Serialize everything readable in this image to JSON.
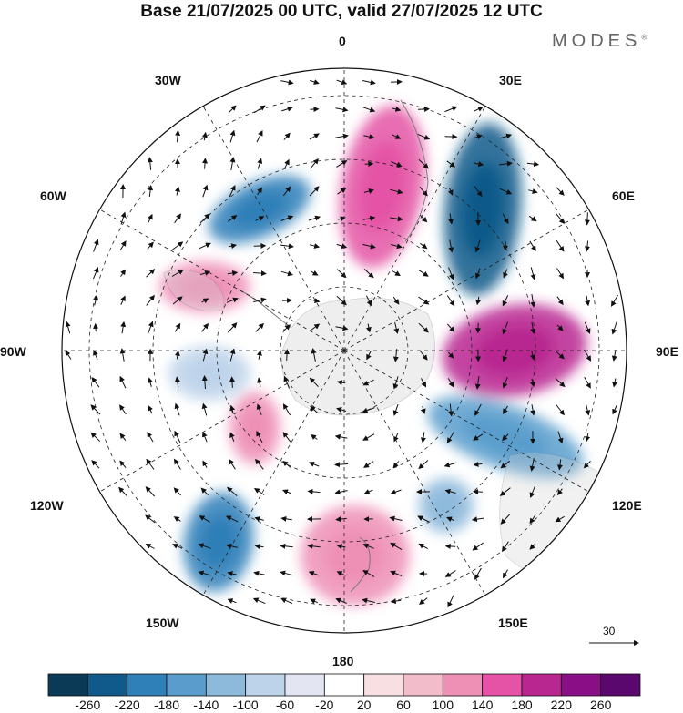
{
  "header": {
    "title": "Base 21/07/2025 00 UTC, valid 27/07/2025 12 UTC",
    "brand": "MODES",
    "brand_mark": "®"
  },
  "longitude_labels": {
    "top": "0",
    "top_right": "30E",
    "upper_right": "60E",
    "right": "90E",
    "lower_right": "120E",
    "bottom_right": "150E",
    "bottom": "180",
    "bottom_left": "150W",
    "lower_left": "120W",
    "left": "90W",
    "upper_left": "60W",
    "top_left": "30W"
  },
  "reference_vector": {
    "label": "30"
  },
  "colorbar": {
    "labels": [
      "-260",
      "-220",
      "-180",
      "-140",
      "-100",
      "-60",
      "-20",
      "20",
      "60",
      "100",
      "140",
      "180",
      "220",
      "260"
    ],
    "colors": [
      "#0b3a57",
      "#0f5a8a",
      "#2f7fb8",
      "#5a9dcc",
      "#8db9db",
      "#bdd3ea",
      "#e3e6f2",
      "#ffffff",
      "#f7dfe2",
      "#f3bccb",
      "#ee8fb6",
      "#e453a5",
      "#b82690",
      "#8a0e86",
      "#5a086e"
    ]
  },
  "anomalies": [
    {
      "name": "anomaly-30w-negative",
      "value": -240,
      "color": "#2f7fb8"
    },
    {
      "name": "anomaly-0-positive",
      "value": 150,
      "color": "#e453a5"
    },
    {
      "name": "anomaly-40e-negative",
      "value": -260,
      "color": "#0f5a8a"
    },
    {
      "name": "anomaly-90e-positive",
      "value": 240,
      "color": "#b82690"
    },
    {
      "name": "anomaly-120e-negative",
      "value": -150,
      "color": "#5a9dcc"
    },
    {
      "name": "anomaly-150e-negative",
      "value": -100,
      "color": "#8db9db"
    },
    {
      "name": "anomaly-180-positive",
      "value": 130,
      "color": "#ee8fb6"
    },
    {
      "name": "anomaly-140w-negative",
      "value": -220,
      "color": "#2f7fb8"
    },
    {
      "name": "anomaly-110w-positive",
      "value": 100,
      "color": "#ee8fb6"
    },
    {
      "name": "anomaly-80w-negative",
      "value": -80,
      "color": "#bdd3ea"
    },
    {
      "name": "anomaly-60w-positive",
      "value": 120,
      "color": "#ee8fb6"
    }
  ]
}
